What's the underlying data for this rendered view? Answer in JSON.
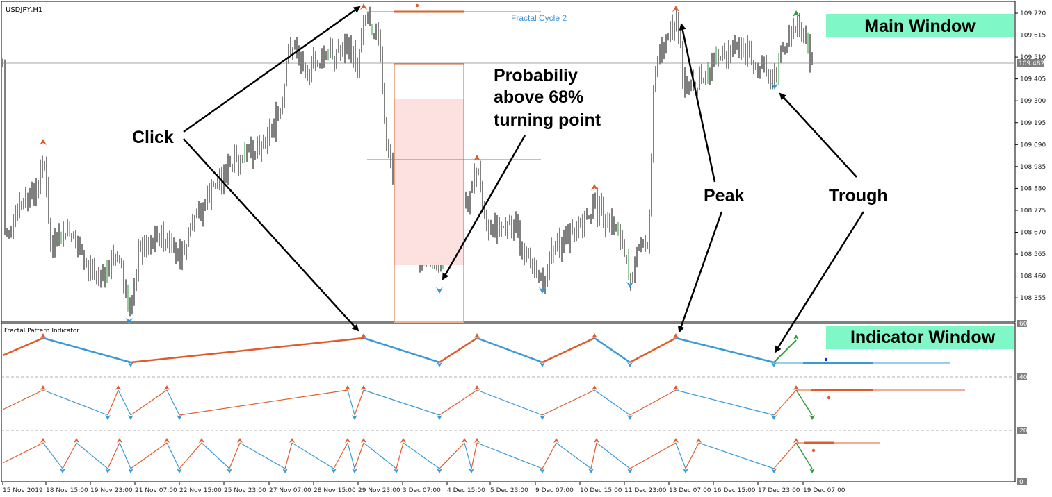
{
  "main_window": {
    "symbol": "USDJPY,H1",
    "label": "Main Window",
    "cycle_label": "Fractal Cycle 2",
    "current_price": "109.482",
    "price_axis": [
      "109.720",
      "109.615",
      "109.510",
      "109.405",
      "109.300",
      "109.195",
      "109.090",
      "108.985",
      "108.880",
      "108.775",
      "108.670",
      "108.565",
      "108.460",
      "108.355"
    ]
  },
  "indicator_window": {
    "title": "Fractal Pattern Indicator",
    "label": "Indicator Window",
    "axis": [
      "60",
      "40",
      "20",
      "0"
    ]
  },
  "time_axis": [
    "15 Nov 2019",
    "18 Nov 15:00",
    "19 Nov 23:00",
    "21 Nov 07:00",
    "22 Nov 15:00",
    "25 Nov 23:00",
    "27 Nov 07:00",
    "28 Nov 15:00",
    "29 Nov 23:00",
    "3 Dec 07:00",
    "4 Dec 15:00",
    "5 Dec 23:00",
    "9 Dec 07:00",
    "10 Dec 15:00",
    "11 Dec 23:00",
    "13 Dec 07:00",
    "16 Dec 15:00",
    "17 Dec 23:00",
    "19 Dec 07:00"
  ],
  "annotations": {
    "click": "Click",
    "probability_line1": "Probabiliy",
    "probability_line2": "above 68%",
    "probability_line3": "turning point",
    "peak": "Peak",
    "trough": "Trough"
  },
  "colors": {
    "peak": "#e05a2a",
    "trough": "#3a9ad9",
    "bullish": "#2e9a3a",
    "highlight": "#7ff7c7",
    "candle": "#000000",
    "zone": "#fde0e0"
  }
}
